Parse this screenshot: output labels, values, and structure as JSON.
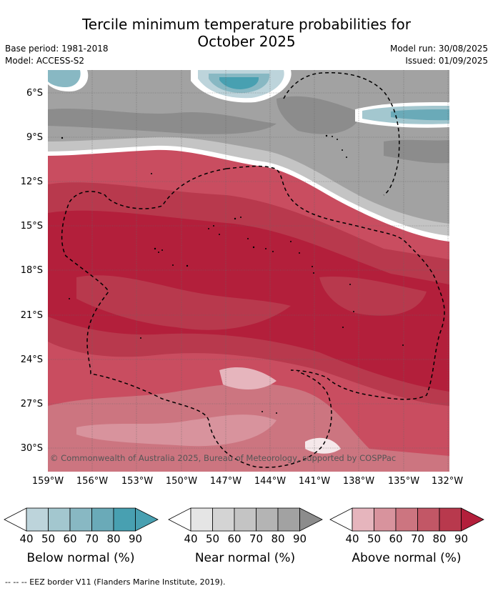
{
  "header": {
    "title_line1": "Tercile minimum temperature probabilities for",
    "title_line2": "October 2025",
    "base_period": "Base period: 1981-2018",
    "model": "Model: ACCESS-S2",
    "model_run": "Model run: 30/08/2025",
    "issued": "Issued: 01/09/2025"
  },
  "map": {
    "lat_labels": [
      "6°S",
      "9°S",
      "12°S",
      "15°S",
      "18°S",
      "21°S",
      "24°S",
      "27°S",
      "30°S"
    ],
    "lon_labels": [
      "159°W",
      "156°W",
      "153°W",
      "150°W",
      "147°W",
      "144°W",
      "141°W",
      "138°W",
      "135°W",
      "132°W"
    ],
    "copyright": "© Commonwealth of Australia 2025, Bureau of Meteorology, supported by COSPPac"
  },
  "colors": {
    "below": [
      "#ffffff",
      "#bdd4db",
      "#a3c7cf",
      "#88b8c3",
      "#6aaab8",
      "#48a0b1"
    ],
    "near": [
      "#ffffff",
      "#e5e5e5",
      "#d4d4d4",
      "#c4c4c4",
      "#b4b4b4",
      "#a2a2a2",
      "#8c8c8c"
    ],
    "above": [
      "#ffffff",
      "#e6b5bd",
      "#d8939d",
      "#cc7580",
      "#c25766",
      "#b8394d",
      "#b31f3b"
    ]
  },
  "legend": {
    "ticks": [
      "40",
      "50",
      "60",
      "70",
      "80",
      "90"
    ],
    "below_label": "Below normal (%)",
    "near_label": "Near normal (%)",
    "above_label": "Above normal (%)"
  },
  "footer": {
    "eez_note": "--  --  -- EEZ border V11 (Flanders Marine Institute, 2019)."
  }
}
